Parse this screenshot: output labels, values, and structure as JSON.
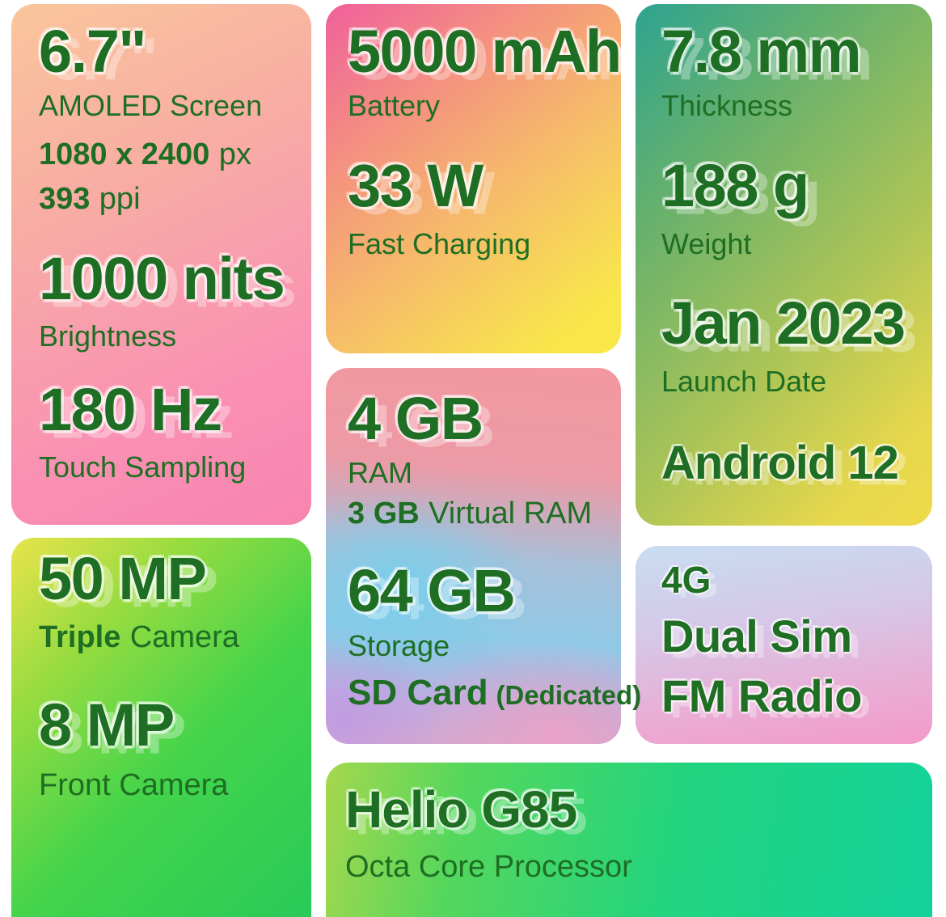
{
  "theme": {
    "text_color": "#1e6e23",
    "background": "#ffffff",
    "halo_color": "rgba(255,255,255,0.45)"
  },
  "cards": {
    "display": {
      "size_value": "6.7\"",
      "size_label": "AMOLED Screen",
      "resolution_value": "1080 x 2400",
      "resolution_unit": "px",
      "ppi_value": "393",
      "ppi_unit": "ppi",
      "brightness_value": "1000 nits",
      "brightness_label": "Brightness",
      "touch_value": "180 Hz",
      "touch_label": "Touch Sampling"
    },
    "battery": {
      "capacity_value": "5000 mAh",
      "capacity_label": "Battery",
      "charging_value": "33 W",
      "charging_label": "Fast Charging"
    },
    "dimensions": {
      "thickness_value": "7.8 mm",
      "thickness_label": "Thickness",
      "weight_value": "188 g",
      "weight_label": "Weight",
      "launch_value": "Jan 2023",
      "launch_label": "Launch Date",
      "os_value": "Android 12"
    },
    "memory": {
      "ram_value": "4 GB",
      "ram_label": "RAM",
      "virtual_ram_value": "3 GB",
      "virtual_ram_label": "Virtual RAM",
      "storage_value": "64 GB",
      "storage_label": "Storage",
      "sd_value": "SD Card",
      "sd_note": "(Dedicated)"
    },
    "camera": {
      "rear_value": "50 MP",
      "rear_type_bold": "Triple",
      "rear_type_rest": "Camera",
      "front_value": "8 MP",
      "front_label": "Front Camera"
    },
    "connectivity": {
      "network_value": "4G",
      "sim_value": "Dual Sim",
      "radio_value": "FM Radio"
    },
    "processor": {
      "chip_value": "Helio G85",
      "chip_label": "Octa Core Processor"
    }
  }
}
